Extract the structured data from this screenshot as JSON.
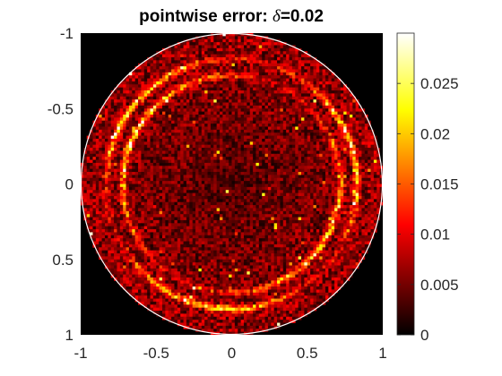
{
  "chart_data": {
    "type": "heatmap",
    "title": {
      "prefix": "pointwise error: ",
      "symbol": "δ",
      "suffix": "=0.02"
    },
    "xlabel": "",
    "ylabel": "",
    "xlim": [
      -1,
      1
    ],
    "ylim": [
      -1,
      1
    ],
    "y_direction": "reversed",
    "x_ticks": [
      "-1",
      "-0.5",
      "0",
      "0.5",
      "1"
    ],
    "y_ticks": [
      "-1",
      "-0.5",
      "0",
      "0.5",
      "1"
    ],
    "domain": "unit disk",
    "boundary_circle": {
      "center": [
        0,
        0
      ],
      "radius": 1,
      "color": "#ffffff"
    },
    "colormap": "hot",
    "colorbar": {
      "range": [
        0,
        0.03
      ],
      "ticks": [
        "0",
        "0.005",
        "0.01",
        "0.015",
        "0.02",
        "0.025"
      ],
      "tick_values": [
        0,
        0.005,
        0.01,
        0.015,
        0.02,
        0.025
      ]
    },
    "description_of_field": {
      "outer_ring_radius": 0.83,
      "inner_ring_radius": 0.72,
      "typical_error_outside_rings": 0.005,
      "peak_error_on_rings": 0.02
    },
    "colors": {
      "background_outside_disk": "#000000",
      "axis_text": "#262626"
    }
  }
}
